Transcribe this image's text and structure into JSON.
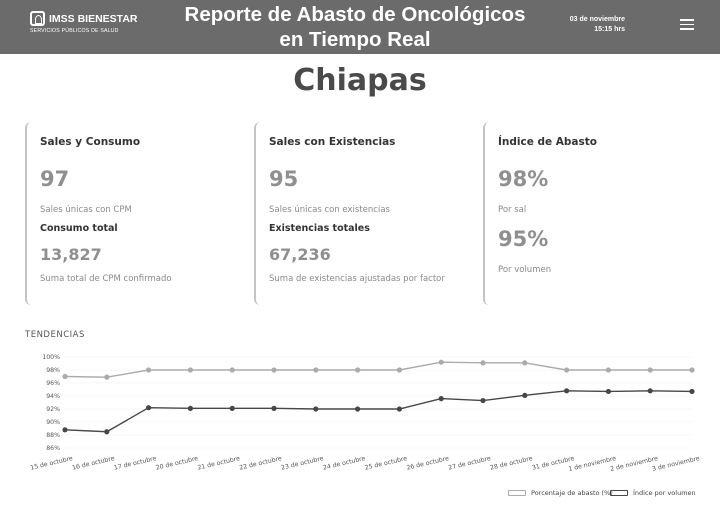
{
  "header": {
    "logo_name": "IMSS BIENESTAR",
    "logo_subtitle": "SERVICIOS PÚBLICOS DE SALUD",
    "title_line1": "Reporte de Abasto de Oncológicos",
    "title_line2": "en Tiempo Real",
    "date": "03 de noviembre",
    "time": "15:15 hrs",
    "menu_icon": "hamburger-menu-icon"
  },
  "state_name": "Chiapas",
  "cards": {
    "sales_consumo": {
      "heading": "Sales y Consumo",
      "value": "97",
      "caption": "Sales únicas con CPM",
      "subheading": "Consumo total",
      "value2": "13,827",
      "caption2": "Suma total de CPM confirmado"
    },
    "sales_existencias": {
      "heading": "Sales con Existencias",
      "value": "95",
      "caption": "Sales únicas con existencias",
      "subheading": "Existencias totales",
      "value2": "67,236",
      "caption2": "Suma de existencias ajustadas por factor"
    },
    "indice_abasto": {
      "heading": "Índice de Abasto",
      "value": "98%",
      "caption": "Por sal",
      "value2": "95%",
      "caption2": "Por volumen"
    }
  },
  "trends_label": "TENDENCIAS",
  "colors": {
    "header_bg": "#6b6b6b",
    "series_light": "#ababab",
    "series_dark": "#474747"
  },
  "chart_data": {
    "type": "line",
    "x": [
      "15 de octubre",
      "16 de octubre",
      "17 de octubre",
      "20 de octubre",
      "21 de octubre",
      "22 de octubre",
      "23 de octubre",
      "24 de octubre",
      "25 de octubre",
      "26 de octubre",
      "27 de octubre",
      "28 de octubre",
      "31 de octubre",
      "1 de noviembre",
      "2 de noviembre",
      "3 de noviembre"
    ],
    "yticks": [
      "100%",
      "98%",
      "96%",
      "94%",
      "92%",
      "90%",
      "88%",
      "86%"
    ],
    "ylim": [
      86,
      100
    ],
    "series": [
      {
        "name": "Porcentaje de abasto (%)",
        "values": [
          97.0,
          96.9,
          98.0,
          98.0,
          98.0,
          98.0,
          98.0,
          98.0,
          98.0,
          99.2,
          99.1,
          99.1,
          98.0,
          98.0,
          98.0,
          98.0
        ]
      },
      {
        "name": "Índice por volumen",
        "values": [
          88.8,
          88.5,
          92.2,
          92.1,
          92.1,
          92.1,
          92.0,
          92.0,
          92.0,
          93.6,
          93.3,
          94.1,
          94.8,
          94.7,
          94.8,
          94.7
        ]
      }
    ],
    "legend": "bottom-right",
    "grid": true
  }
}
